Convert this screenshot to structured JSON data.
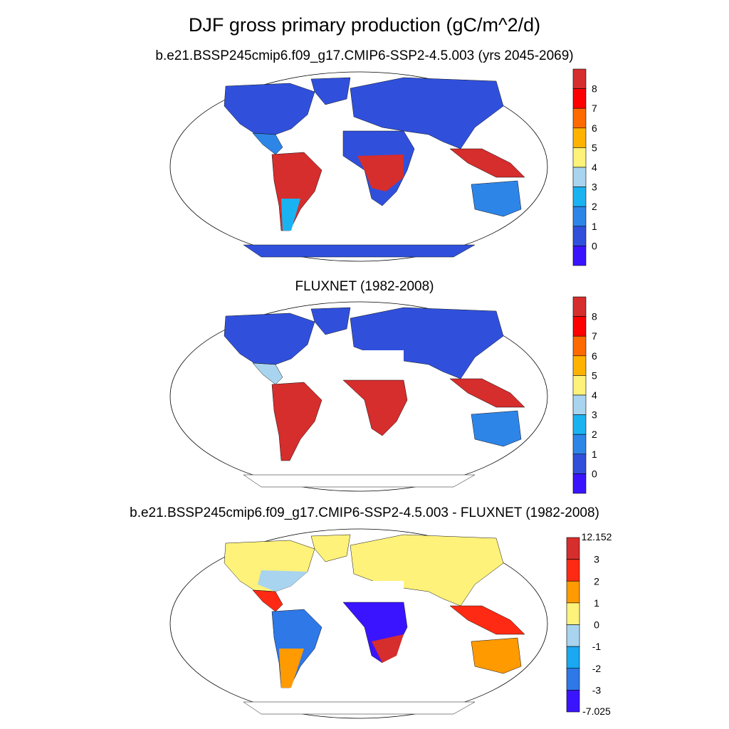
{
  "figure": {
    "title": "DJF gross primary production (gC/m^2/d)"
  },
  "panels": [
    {
      "subtitle": "b.e21.BSSP245cmip6.f09_g17.CMIP6-SSP2-4.5.003 (yrs 2045-2069)",
      "colorbar": {
        "labels": [
          "8",
          "7",
          "6",
          "5",
          "4",
          "3",
          "2",
          "1",
          "0"
        ],
        "colors": [
          "#d62d2d",
          "#ff0000",
          "#ff6a00",
          "#ffb300",
          "#fff27a",
          "#a9d4ef",
          "#1ab3f2",
          "#2e85e8",
          "#3050dc",
          "#3b14ff"
        ]
      }
    },
    {
      "subtitle": "FLUXNET (1982-2008)",
      "colorbar": {
        "labels": [
          "8",
          "7",
          "6",
          "5",
          "4",
          "3",
          "2",
          "1",
          "0"
        ],
        "colors": [
          "#d62d2d",
          "#ff0000",
          "#ff6a00",
          "#ffb300",
          "#fff27a",
          "#a9d4ef",
          "#1ab3f2",
          "#2e85e8",
          "#3050dc",
          "#3b14ff"
        ]
      }
    },
    {
      "subtitle": "b.e21.BSSP245cmip6.f09_g17.CMIP6-SSP2-4.5.003 - FLUXNET (1982-2008)",
      "colorbar": {
        "labels": [
          "12.152",
          "3",
          "2",
          "1",
          "0",
          "-1",
          "-2",
          "-3",
          "-7.025"
        ],
        "colors": [
          "#d62d2d",
          "#ff2a14",
          "#ff9a00",
          "#fff27a",
          "#a9d4ef",
          "#1aa8f2",
          "#2e78e8",
          "#3b14ff"
        ]
      }
    }
  ]
}
